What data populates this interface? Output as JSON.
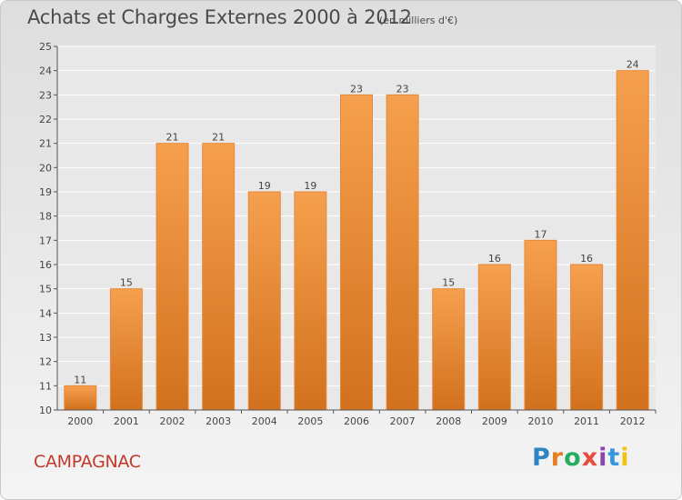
{
  "title": "Achats et Charges Externes 2000 à 2012",
  "subtitle": "(en milliers d'€)",
  "commune": "CAMPAGNAC",
  "brand": {
    "text": "Proxiti",
    "letter_colors": [
      "#2e86c1",
      "#e67e22",
      "#27ae60",
      "#e74c3c",
      "#8e44ad",
      "#3498db",
      "#f1c40f"
    ]
  },
  "colors": {
    "bar_top": "#f5a04e",
    "bar_bottom": "#d2711d",
    "bar_edge": "#e8893a",
    "grid": "#ffffff",
    "axis": "#555555",
    "plot_bg": "#e8e8e8",
    "title": "#4a4a4a",
    "commune": "#c0392b"
  },
  "chart_data": {
    "type": "bar",
    "categories": [
      "2000",
      "2001",
      "2002",
      "2003",
      "2004",
      "2005",
      "2006",
      "2007",
      "2008",
      "2009",
      "2010",
      "2011",
      "2012"
    ],
    "values": [
      11,
      15,
      21,
      21,
      19,
      19,
      23,
      23,
      15,
      16,
      17,
      16,
      24
    ],
    "ylim": [
      10,
      25
    ],
    "yticks": [
      10,
      11,
      12,
      13,
      14,
      15,
      16,
      17,
      18,
      19,
      20,
      21,
      22,
      23,
      24,
      25
    ],
    "grid": true
  }
}
